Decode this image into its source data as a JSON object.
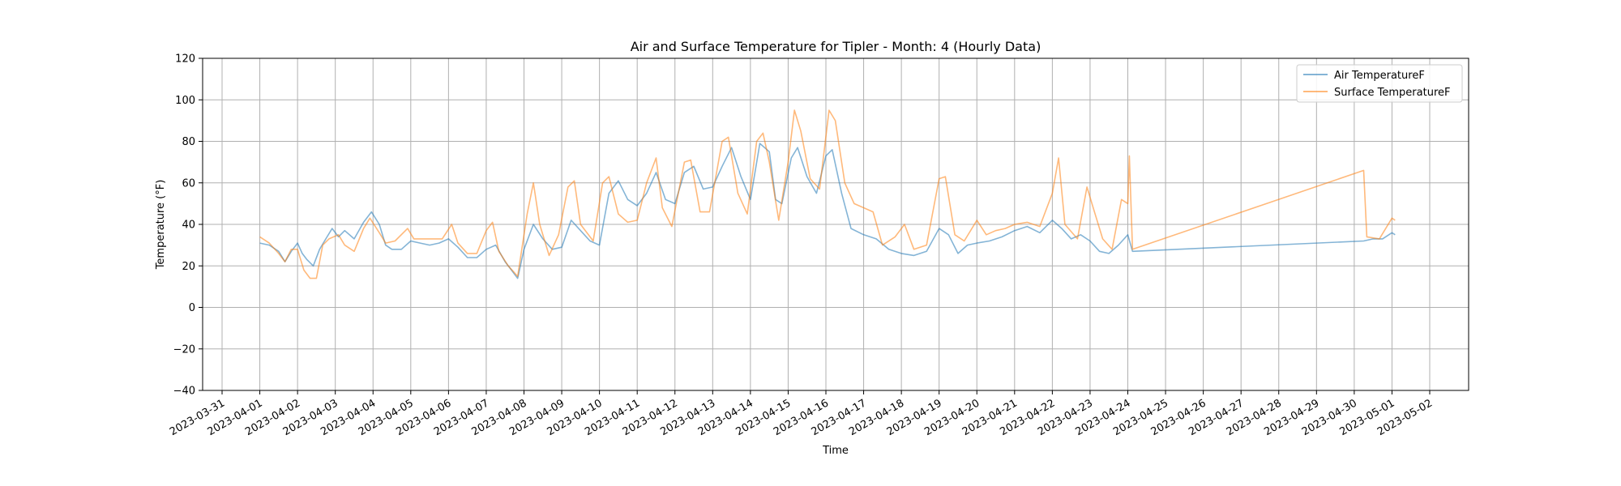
{
  "chart_data": {
    "type": "line",
    "title": "Air and Surface Temperature for Tipler - Month: 4 (Hourly Data)",
    "xlabel": "Time",
    "ylabel": "Temperature (°F)",
    "ylim": [
      -40,
      120
    ],
    "xlim": [
      "2023-03-31",
      "2023-05-02"
    ],
    "grid": true,
    "legend_position": "top-right",
    "x_ticks": [
      "2023-03-31",
      "2023-04-01",
      "2023-04-02",
      "2023-04-03",
      "2023-04-04",
      "2023-04-05",
      "2023-04-06",
      "2023-04-07",
      "2023-04-08",
      "2023-04-09",
      "2023-04-10",
      "2023-04-11",
      "2023-04-12",
      "2023-04-13",
      "2023-04-14",
      "2023-04-15",
      "2023-04-16",
      "2023-04-17",
      "2023-04-18",
      "2023-04-19",
      "2023-04-20",
      "2023-04-21",
      "2023-04-22",
      "2023-04-23",
      "2023-04-24",
      "2023-04-25",
      "2023-04-26",
      "2023-04-27",
      "2023-04-28",
      "2023-04-29",
      "2023-04-30",
      "2023-05-01",
      "2023-05-02"
    ],
    "y_ticks": [
      -40,
      -20,
      0,
      20,
      40,
      60,
      80,
      100,
      120
    ],
    "series": [
      {
        "name": "Air TemperatureF",
        "color": "#1f77b4",
        "points": [
          [
            "2023-04-01 00:00",
            31
          ],
          [
            "2023-04-01 06:00",
            30
          ],
          [
            "2023-04-01 12:00",
            27
          ],
          [
            "2023-04-01 16:00",
            22
          ],
          [
            "2023-04-01 20:00",
            27
          ],
          [
            "2023-04-02 00:00",
            31
          ],
          [
            "2023-04-02 03:00",
            26
          ],
          [
            "2023-04-02 06:00",
            23
          ],
          [
            "2023-04-02 10:00",
            20
          ],
          [
            "2023-04-02 14:00",
            28
          ],
          [
            "2023-04-02 18:00",
            33
          ],
          [
            "2023-04-02 22:00",
            38
          ],
          [
            "2023-04-03 02:00",
            34
          ],
          [
            "2023-04-03 06:00",
            37
          ],
          [
            "2023-04-03 12:00",
            33
          ],
          [
            "2023-04-03 18:00",
            41
          ],
          [
            "2023-04-03 23:00",
            46
          ],
          [
            "2023-04-04 04:00",
            40
          ],
          [
            "2023-04-04 08:00",
            30
          ],
          [
            "2023-04-04 12:00",
            28
          ],
          [
            "2023-04-04 18:00",
            28
          ],
          [
            "2023-04-05 00:00",
            32
          ],
          [
            "2023-04-05 06:00",
            31
          ],
          [
            "2023-04-05 12:00",
            30
          ],
          [
            "2023-04-05 18:00",
            31
          ],
          [
            "2023-04-06 00:00",
            33
          ],
          [
            "2023-04-06 06:00",
            29
          ],
          [
            "2023-04-06 12:00",
            24
          ],
          [
            "2023-04-06 18:00",
            24
          ],
          [
            "2023-04-07 00:00",
            28
          ],
          [
            "2023-04-07 06:00",
            30
          ],
          [
            "2023-04-07 12:00",
            22
          ],
          [
            "2023-04-07 16:00",
            18
          ],
          [
            "2023-04-07 20:00",
            14
          ],
          [
            "2023-04-08 00:00",
            28
          ],
          [
            "2023-04-08 06:00",
            40
          ],
          [
            "2023-04-08 12:00",
            33
          ],
          [
            "2023-04-08 18:00",
            28
          ],
          [
            "2023-04-09 00:00",
            29
          ],
          [
            "2023-04-09 06:00",
            42
          ],
          [
            "2023-04-09 12:00",
            37
          ],
          [
            "2023-04-09 18:00",
            32
          ],
          [
            "2023-04-10 00:00",
            30
          ],
          [
            "2023-04-10 06:00",
            55
          ],
          [
            "2023-04-10 12:00",
            61
          ],
          [
            "2023-04-10 18:00",
            52
          ],
          [
            "2023-04-11 00:00",
            49
          ],
          [
            "2023-04-11 06:00",
            55
          ],
          [
            "2023-04-11 12:00",
            65
          ],
          [
            "2023-04-11 18:00",
            52
          ],
          [
            "2023-04-12 00:00",
            50
          ],
          [
            "2023-04-12 06:00",
            65
          ],
          [
            "2023-04-12 12:00",
            68
          ],
          [
            "2023-04-12 18:00",
            57
          ],
          [
            "2023-04-13 00:00",
            58
          ],
          [
            "2023-04-13 06:00",
            68
          ],
          [
            "2023-04-13 12:00",
            77
          ],
          [
            "2023-04-13 18:00",
            63
          ],
          [
            "2023-04-14 00:00",
            52
          ],
          [
            "2023-04-14 06:00",
            79
          ],
          [
            "2023-04-14 12:00",
            75
          ],
          [
            "2023-04-14 16:00",
            52
          ],
          [
            "2023-04-14 20:00",
            50
          ],
          [
            "2023-04-15 02:00",
            72
          ],
          [
            "2023-04-15 06:00",
            77
          ],
          [
            "2023-04-15 12:00",
            63
          ],
          [
            "2023-04-15 18:00",
            55
          ],
          [
            "2023-04-16 00:00",
            73
          ],
          [
            "2023-04-16 04:00",
            76
          ],
          [
            "2023-04-16 10:00",
            55
          ],
          [
            "2023-04-16 16:00",
            38
          ],
          [
            "2023-04-17 00:00",
            35
          ],
          [
            "2023-04-17 08:00",
            33
          ],
          [
            "2023-04-17 16:00",
            28
          ],
          [
            "2023-04-18 00:00",
            26
          ],
          [
            "2023-04-18 08:00",
            25
          ],
          [
            "2023-04-18 16:00",
            27
          ],
          [
            "2023-04-19 00:00",
            38
          ],
          [
            "2023-04-19 06:00",
            35
          ],
          [
            "2023-04-19 12:00",
            26
          ],
          [
            "2023-04-19 18:00",
            30
          ],
          [
            "2023-04-20 00:00",
            31
          ],
          [
            "2023-04-20 08:00",
            32
          ],
          [
            "2023-04-20 16:00",
            34
          ],
          [
            "2023-04-21 00:00",
            37
          ],
          [
            "2023-04-21 08:00",
            39
          ],
          [
            "2023-04-21 16:00",
            36
          ],
          [
            "2023-04-22 00:00",
            42
          ],
          [
            "2023-04-22 06:00",
            38
          ],
          [
            "2023-04-22 12:00",
            33
          ],
          [
            "2023-04-22 18:00",
            35
          ],
          [
            "2023-04-23 00:00",
            32
          ],
          [
            "2023-04-23 06:00",
            27
          ],
          [
            "2023-04-23 12:00",
            26
          ],
          [
            "2023-04-23 18:00",
            30
          ],
          [
            "2023-04-24 00:00",
            35
          ],
          [
            "2023-04-24 03:00",
            27
          ],
          [
            "2023-04-30 06:00",
            32
          ],
          [
            "2023-04-30 12:00",
            33
          ],
          [
            "2023-04-30 18:00",
            33
          ],
          [
            "2023-05-01 00:00",
            36
          ],
          [
            "2023-05-01 02:00",
            35
          ]
        ]
      },
      {
        "name": "Surface TemperatureF",
        "color": "#ff7f0e",
        "points": [
          [
            "2023-04-01 00:00",
            34
          ],
          [
            "2023-04-01 06:00",
            31
          ],
          [
            "2023-04-01 12:00",
            26
          ],
          [
            "2023-04-01 16:00",
            22
          ],
          [
            "2023-04-01 20:00",
            28
          ],
          [
            "2023-04-02 00:00",
            28
          ],
          [
            "2023-04-02 04:00",
            18
          ],
          [
            "2023-04-02 08:00",
            14
          ],
          [
            "2023-04-02 12:00",
            14
          ],
          [
            "2023-04-02 16:00",
            30
          ],
          [
            "2023-04-02 20:00",
            33
          ],
          [
            "2023-04-03 02:00",
            35
          ],
          [
            "2023-04-03 06:00",
            30
          ],
          [
            "2023-04-03 12:00",
            27
          ],
          [
            "2023-04-03 18:00",
            38
          ],
          [
            "2023-04-03 22:00",
            43
          ],
          [
            "2023-04-04 04:00",
            36
          ],
          [
            "2023-04-04 08:00",
            31
          ],
          [
            "2023-04-04 14:00",
            32
          ],
          [
            "2023-04-04 22:00",
            38
          ],
          [
            "2023-04-05 02:00",
            33
          ],
          [
            "2023-04-05 12:00",
            33
          ],
          [
            "2023-04-05 20:00",
            33
          ],
          [
            "2023-04-06 02:00",
            40
          ],
          [
            "2023-04-06 06:00",
            31
          ],
          [
            "2023-04-06 12:00",
            26
          ],
          [
            "2023-04-06 18:00",
            26
          ],
          [
            "2023-04-07 00:00",
            37
          ],
          [
            "2023-04-07 04:00",
            41
          ],
          [
            "2023-04-07 08:00",
            27
          ],
          [
            "2023-04-07 14:00",
            20
          ],
          [
            "2023-04-07 20:00",
            15
          ],
          [
            "2023-04-08 02:00",
            45
          ],
          [
            "2023-04-08 06:00",
            60
          ],
          [
            "2023-04-08 10:00",
            40
          ],
          [
            "2023-04-08 16:00",
            25
          ],
          [
            "2023-04-08 22:00",
            35
          ],
          [
            "2023-04-09 04:00",
            58
          ],
          [
            "2023-04-09 08:00",
            61
          ],
          [
            "2023-04-09 12:00",
            40
          ],
          [
            "2023-04-09 20:00",
            32
          ],
          [
            "2023-04-10 02:00",
            60
          ],
          [
            "2023-04-10 06:00",
            63
          ],
          [
            "2023-04-10 12:00",
            45
          ],
          [
            "2023-04-10 18:00",
            41
          ],
          [
            "2023-04-11 00:00",
            42
          ],
          [
            "2023-04-11 06:00",
            60
          ],
          [
            "2023-04-11 12:00",
            72
          ],
          [
            "2023-04-11 16:00",
            48
          ],
          [
            "2023-04-11 22:00",
            39
          ],
          [
            "2023-04-12 06:00",
            70
          ],
          [
            "2023-04-12 10:00",
            71
          ],
          [
            "2023-04-12 16:00",
            46
          ],
          [
            "2023-04-12 22:00",
            46
          ],
          [
            "2023-04-13 06:00",
            80
          ],
          [
            "2023-04-13 10:00",
            82
          ],
          [
            "2023-04-13 16:00",
            55
          ],
          [
            "2023-04-13 22:00",
            45
          ],
          [
            "2023-04-14 04:00",
            80
          ],
          [
            "2023-04-14 08:00",
            84
          ],
          [
            "2023-04-14 12:00",
            70
          ],
          [
            "2023-04-14 18:00",
            42
          ],
          [
            "2023-04-15 00:00",
            70
          ],
          [
            "2023-04-15 04:00",
            95
          ],
          [
            "2023-04-15 08:00",
            85
          ],
          [
            "2023-04-15 14:00",
            62
          ],
          [
            "2023-04-15 20:00",
            57
          ],
          [
            "2023-04-16 02:00",
            95
          ],
          [
            "2023-04-16 06:00",
            90
          ],
          [
            "2023-04-16 12:00",
            60
          ],
          [
            "2023-04-16 18:00",
            50
          ],
          [
            "2023-04-17 00:00",
            48
          ],
          [
            "2023-04-17 06:00",
            46
          ],
          [
            "2023-04-17 12:00",
            30
          ],
          [
            "2023-04-17 20:00",
            34
          ],
          [
            "2023-04-18 02:00",
            40
          ],
          [
            "2023-04-18 08:00",
            28
          ],
          [
            "2023-04-18 16:00",
            30
          ],
          [
            "2023-04-19 00:00",
            62
          ],
          [
            "2023-04-19 04:00",
            63
          ],
          [
            "2023-04-19 10:00",
            35
          ],
          [
            "2023-04-19 16:00",
            32
          ],
          [
            "2023-04-20 00:00",
            42
          ],
          [
            "2023-04-20 06:00",
            35
          ],
          [
            "2023-04-20 12:00",
            37
          ],
          [
            "2023-04-20 18:00",
            38
          ],
          [
            "2023-04-21 00:00",
            40
          ],
          [
            "2023-04-21 08:00",
            41
          ],
          [
            "2023-04-21 16:00",
            39
          ],
          [
            "2023-04-22 00:00",
            55
          ],
          [
            "2023-04-22 04:00",
            72
          ],
          [
            "2023-04-22 08:00",
            40
          ],
          [
            "2023-04-22 16:00",
            33
          ],
          [
            "2023-04-22 22:00",
            58
          ],
          [
            "2023-04-23 02:00",
            48
          ],
          [
            "2023-04-23 08:00",
            33
          ],
          [
            "2023-04-23 14:00",
            28
          ],
          [
            "2023-04-23 20:00",
            52
          ],
          [
            "2023-04-24 00:00",
            50
          ],
          [
            "2023-04-24 01:00",
            73
          ],
          [
            "2023-04-24 03:00",
            28
          ],
          [
            "2023-04-30 06:00",
            66
          ],
          [
            "2023-04-30 08:00",
            34
          ],
          [
            "2023-04-30 16:00",
            33
          ],
          [
            "2023-05-01 00:00",
            43
          ],
          [
            "2023-05-01 02:00",
            42
          ]
        ]
      }
    ]
  }
}
